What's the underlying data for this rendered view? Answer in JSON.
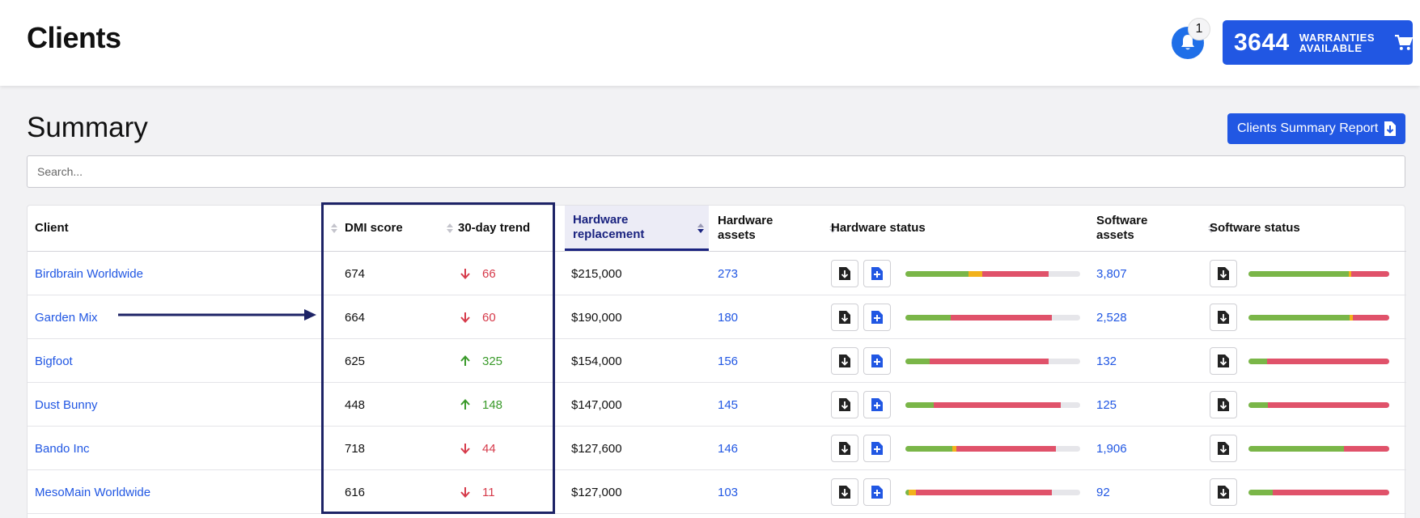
{
  "header": {
    "title": "Clients",
    "notifications": "1",
    "warranties": {
      "count": "3644",
      "label": "WARRANTIES AVAILABLE"
    }
  },
  "summary": {
    "title": "Summary",
    "report_button": "Clients Summary Report",
    "search_placeholder": "Search..."
  },
  "table": {
    "columns": {
      "client": "Client",
      "dmi": "DMI score",
      "trend": "30-day trend",
      "hw_replacement": "Hardware replacement",
      "hw_assets": "Hardware assets",
      "hw_status": "Hardware status",
      "sw_assets": "Software assets",
      "sw_status": "Software status"
    },
    "rows": [
      {
        "client": "Birdbrain Worldwide",
        "dmi": "674",
        "trend": "66",
        "trend_dir": "down",
        "hw_replacement": "$215,000",
        "hw_assets": "273",
        "sw_assets": "3,807",
        "hw_status": {
          "green": 0.36,
          "yellow": 0.08,
          "red": 0.38
        },
        "sw_status": {
          "green": 0.71,
          "yellow": 0.02,
          "red": 0.27
        }
      },
      {
        "client": "Garden Mix",
        "dmi": "664",
        "trend": "60",
        "trend_dir": "down",
        "hw_replacement": "$190,000",
        "hw_assets": "180",
        "sw_assets": "2,528",
        "hw_status": {
          "green": 0.26,
          "yellow": 0.0,
          "red": 0.58
        },
        "sw_status": {
          "green": 0.72,
          "yellow": 0.02,
          "red": 0.26
        }
      },
      {
        "client": "Bigfoot",
        "dmi": "625",
        "trend": "325",
        "trend_dir": "up",
        "hw_replacement": "$154,000",
        "hw_assets": "156",
        "sw_assets": "132",
        "hw_status": {
          "green": 0.14,
          "yellow": 0.0,
          "red": 0.68
        },
        "sw_status": {
          "green": 0.13,
          "yellow": 0.0,
          "red": 0.87
        }
      },
      {
        "client": "Dust Bunny",
        "dmi": "448",
        "trend": "148",
        "trend_dir": "up",
        "hw_replacement": "$147,000",
        "hw_assets": "145",
        "sw_assets": "125",
        "hw_status": {
          "green": 0.16,
          "yellow": 0.0,
          "red": 0.73
        },
        "sw_status": {
          "green": 0.14,
          "yellow": 0.0,
          "red": 0.86
        }
      },
      {
        "client": "Bando Inc",
        "dmi": "718",
        "trend": "44",
        "trend_dir": "down",
        "hw_replacement": "$127,600",
        "hw_assets": "146",
        "sw_assets": "1,906",
        "hw_status": {
          "green": 0.27,
          "yellow": 0.02,
          "red": 0.57
        },
        "sw_status": {
          "green": 0.68,
          "yellow": 0.0,
          "red": 0.32
        }
      },
      {
        "client": "MesoMain Worldwide",
        "dmi": "616",
        "trend": "11",
        "trend_dir": "down",
        "hw_replacement": "$127,000",
        "hw_assets": "103",
        "sw_assets": "92",
        "hw_status": {
          "green": 0.02,
          "yellow": 0.04,
          "red": 0.78
        },
        "sw_status": {
          "green": 0.17,
          "yellow": 0.0,
          "red": 0.83
        }
      }
    ]
  },
  "colors": {
    "accent": "#2157e3",
    "green": "#7ab648",
    "yellow": "#f2b21b",
    "red": "#e0526a",
    "highlight": "#1d2366"
  }
}
